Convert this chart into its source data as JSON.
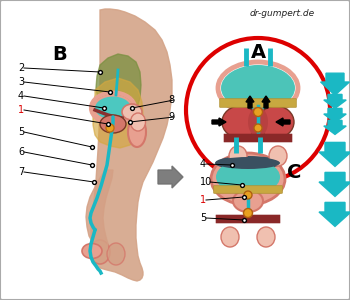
{
  "bg_white": "#ffffff",
  "bg_outer": "#e0e0e0",
  "teal": "#1ab8c4",
  "teal_dark": "#0a9aaa",
  "pink_light": "#e8a090",
  "pink_medium": "#d4776a",
  "pink_pale": "#f0c0b0",
  "red_circle": "#dd0000",
  "green_teal": "#4cc4b8",
  "skin_tone": "#d4a085",
  "skin_dark": "#c08870",
  "olive_green": "#7a9040",
  "yellow_fat": "#d4a840",
  "gold_band": "#c8a840",
  "orange_dot": "#e8a020",
  "dark_brown": "#7a3828",
  "dark_maroon": "#8a2828",
  "gray_arrow": "#686868",
  "black": "#111111",
  "watermark": "dr-gumpert.de",
  "label_A": "A",
  "label_B": "B",
  "label_C": "C"
}
